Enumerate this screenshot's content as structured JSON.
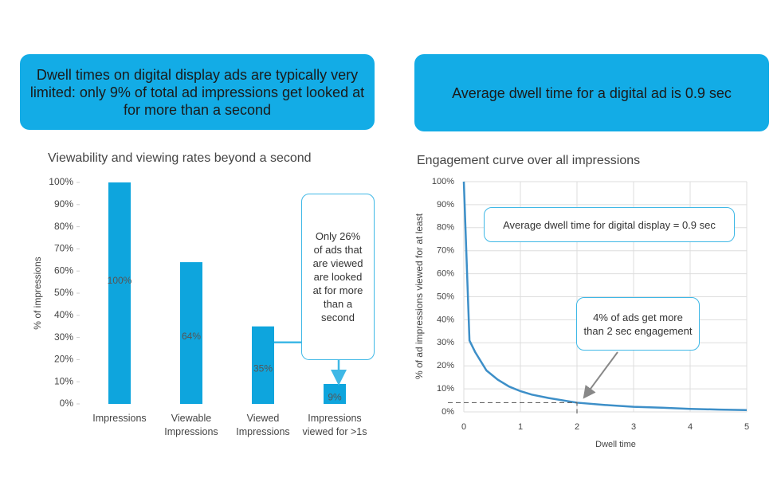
{
  "headers": [
    "Dwell times on digital display ads are typically very limited: only 9% of total ad impressions get looked at for more than a second",
    "Average dwell time for a digital ad is 0.9 sec"
  ],
  "chart_data": [
    {
      "type": "bar",
      "title": "Viewability and viewing rates beyond a second",
      "y_label": "% of impressions",
      "categories": [
        "Impressions",
        "Viewable\nImpressions",
        "Viewed\nImpressions",
        "Impressions\nviewed for >1s"
      ],
      "values": [
        100,
        64,
        35,
        9
      ],
      "value_labels": [
        "100%",
        "64%",
        "35%",
        "9%"
      ],
      "color": "#0ea5dd",
      "ylim": [
        0,
        100
      ],
      "yticks": [
        {
          "value": 0,
          "label": "0%"
        },
        {
          "value": 10,
          "label": "10%"
        },
        {
          "value": 20,
          "label": "20%"
        },
        {
          "value": 30,
          "label": "30%"
        },
        {
          "value": 40,
          "label": "40%"
        },
        {
          "value": 50,
          "label": "50%"
        },
        {
          "value": 60,
          "label": "60%"
        },
        {
          "value": 70,
          "label": "70%"
        },
        {
          "value": 80,
          "label": "80%"
        },
        {
          "value": 90,
          "label": "90%"
        },
        {
          "value": 100,
          "label": "100%"
        }
      ],
      "annotation": "Only 26% of ads that are viewed are looked at for more than a second"
    },
    {
      "type": "line",
      "title": "Engagement curve over all impressions",
      "x_label": "Dwell time",
      "y_label": "% of ad impressions viewed for at least",
      "x": [
        0,
        0.1,
        0.2,
        0.4,
        0.6,
        0.8,
        1,
        1.2,
        1.5,
        2,
        2.5,
        3,
        3.5,
        4,
        4.5,
        5
      ],
      "values": [
        100,
        31,
        26,
        18,
        14,
        11,
        9,
        7.5,
        6,
        4,
        3,
        2.2,
        1.8,
        1.3,
        1,
        0.8
      ],
      "color": "#3d8fc8",
      "xlim": [
        0,
        5
      ],
      "xticks": [
        0,
        1,
        2,
        3,
        4,
        5
      ],
      "ylim": [
        0,
        100
      ],
      "yticks": [
        {
          "value": 0,
          "label": "0%"
        },
        {
          "value": 10,
          "label": "10%"
        },
        {
          "value": 20,
          "label": "20%"
        },
        {
          "value": 30,
          "label": "30%"
        },
        {
          "value": 40,
          "label": "40%"
        },
        {
          "value": 50,
          "label": "50%"
        },
        {
          "value": 60,
          "label": "60%"
        },
        {
          "value": 70,
          "label": "70%"
        },
        {
          "value": 80,
          "label": "80%"
        },
        {
          "value": 90,
          "label": "90%"
        },
        {
          "value": 100,
          "label": "100%"
        }
      ],
      "grid": true,
      "annotations": [
        "Average dwell time for digital display = 0.9 sec",
        "4% of ads get more than 2 sec engagement"
      ]
    }
  ]
}
